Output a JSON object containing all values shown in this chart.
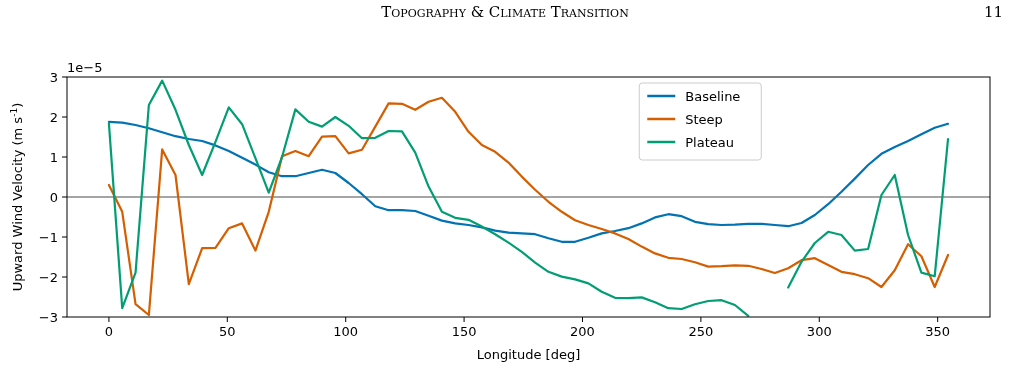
{
  "chart_data": {
    "type": "line",
    "title": "Topography & Climate Transition",
    "xlabel": "Longitude [deg]",
    "ylabel": "Upward Wind Velocity (m s$^{-1}$)",
    "annotations": [
      "11",
      "1e−5"
    ],
    "x": [
      0,
      5.625,
      11.25,
      16.875,
      22.5,
      28.125,
      33.75,
      39.375,
      45,
      50.625,
      56.25,
      61.875,
      67.5,
      73.125,
      78.75,
      84.375,
      90,
      95.625,
      101.25,
      106.875,
      112.5,
      118.125,
      123.75,
      129.375,
      135,
      140.625,
      146.25,
      151.875,
      157.5,
      163.125,
      168.75,
      174.375,
      180,
      185.625,
      191.25,
      196.875,
      202.5,
      208.125,
      213.75,
      219.375,
      225,
      230.625,
      236.25,
      241.875,
      247.5,
      253.125,
      258.75,
      264.375,
      270,
      275.625,
      281.25,
      286.875,
      292.5,
      298.125,
      303.75,
      309.375,
      315,
      320.625,
      326.25,
      331.875,
      337.5,
      343.125,
      348.75,
      354.375
    ],
    "series": [
      {
        "name": "Baseline",
        "color": "#0173b2",
        "values": [
          1.88,
          1.86,
          1.8,
          1.72,
          1.62,
          1.52,
          1.45,
          1.4,
          1.29,
          1.15,
          0.98,
          0.81,
          0.62,
          0.52,
          0.52,
          0.6,
          0.68,
          0.6,
          0.35,
          0.07,
          -0.23,
          -0.33,
          -0.33,
          -0.35,
          -0.47,
          -0.59,
          -0.66,
          -0.7,
          -0.76,
          -0.84,
          -0.89,
          -0.91,
          -0.93,
          -1.03,
          -1.12,
          -1.12,
          -1.02,
          -0.91,
          -0.85,
          -0.78,
          -0.66,
          -0.51,
          -0.43,
          -0.48,
          -0.62,
          -0.68,
          -0.7,
          -0.69,
          -0.67,
          -0.67,
          -0.7,
          -0.73,
          -0.65,
          -0.45,
          -0.18,
          0.13,
          0.46,
          0.8,
          1.08,
          1.25,
          1.4,
          1.57,
          1.73,
          1.83
        ]
      },
      {
        "name": "Steep",
        "color": "#d55e00",
        "values": [
          0.3,
          -0.37,
          -2.68,
          -2.95,
          1.19,
          0.55,
          -2.18,
          -1.28,
          -1.27,
          -0.78,
          -0.66,
          -1.34,
          -0.37,
          1.02,
          1.15,
          1.02,
          1.51,
          1.52,
          1.09,
          1.18,
          1.76,
          2.34,
          2.33,
          2.18,
          2.38,
          2.48,
          2.13,
          1.63,
          1.3,
          1.13,
          0.86,
          0.51,
          0.18,
          -0.12,
          -0.37,
          -0.58,
          -0.7,
          -0.8,
          -0.91,
          -1.05,
          -1.24,
          -1.41,
          -1.52,
          -1.55,
          -1.63,
          -1.74,
          -1.73,
          -1.71,
          -1.72,
          -1.8,
          -1.9,
          -1.78,
          -1.58,
          -1.53,
          -1.7,
          -1.87,
          -1.93,
          -2.03,
          -2.25,
          -1.83,
          -1.18,
          -1.48,
          -2.25,
          -1.45
        ]
      },
      {
        "name": "Plateau",
        "color": "#029e73",
        "values": [
          1.84,
          -2.78,
          -1.89,
          2.3,
          2.91,
          2.18,
          1.3,
          0.55,
          1.38,
          2.24,
          1.82,
          0.97,
          0.11,
          1.0,
          2.19,
          1.88,
          1.76,
          2.0,
          1.78,
          1.47,
          1.48,
          1.65,
          1.64,
          1.11,
          0.26,
          -0.37,
          -0.52,
          -0.57,
          -0.74,
          -0.93,
          -1.14,
          -1.37,
          -1.64,
          -1.87,
          -1.99,
          -2.06,
          -2.16,
          -2.37,
          -2.52,
          -2.53,
          -2.51,
          -2.63,
          -2.78,
          -2.8,
          -2.68,
          -2.6,
          -2.58,
          -2.7,
          -2.97,
          null,
          null,
          -2.26,
          -1.62,
          -1.15,
          -0.87,
          -0.95,
          -1.34,
          -1.3,
          0.05,
          0.55,
          -0.95,
          -1.89,
          -1.98,
          1.45
        ]
      }
    ],
    "xlim": [
      -17.7,
      372.1
    ],
    "ylim": [
      -3,
      3
    ],
    "xticks": [
      0,
      50,
      100,
      150,
      200,
      250,
      300,
      350
    ],
    "yticks": [
      -3,
      -2,
      -1,
      0,
      1,
      2,
      3
    ],
    "ref_lines": [
      {
        "axis": "y",
        "value": 0,
        "color": "#000000"
      }
    ],
    "grid": false,
    "legend": "top right",
    "line_style": "solid",
    "marker": "none"
  }
}
